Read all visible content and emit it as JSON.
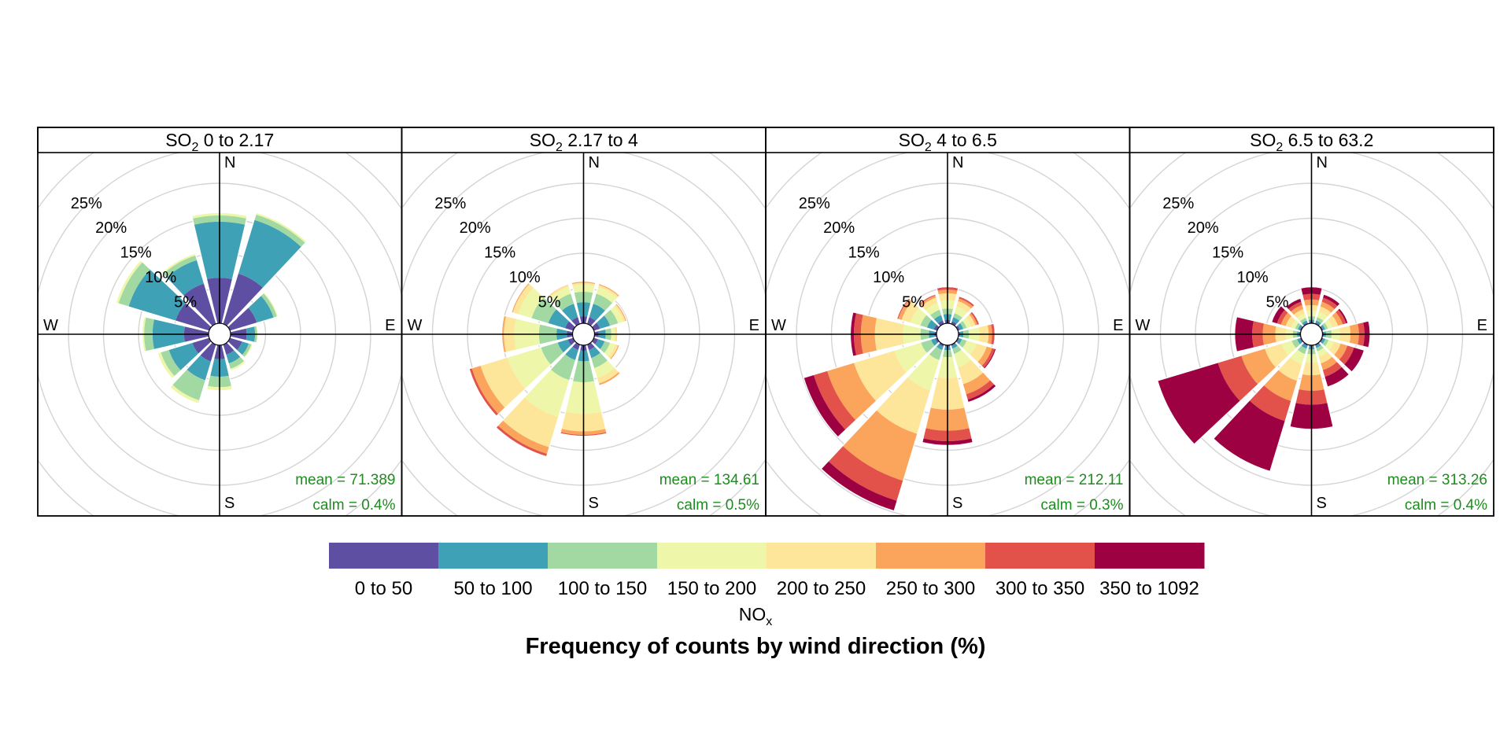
{
  "chart_data": {
    "type": "polar-stacked-bar",
    "caption": "Frequency of counts by wind direction (%)",
    "radial_ticks": [
      "5%",
      "10%",
      "15%",
      "20%",
      "25%"
    ],
    "radial_max": 30,
    "compass": {
      "n": "N",
      "e": "E",
      "s": "S",
      "w": "W"
    },
    "bin_colors": [
      "#5e4fa2",
      "#3fa1b5",
      "#a2d9a3",
      "#eef7a9",
      "#fde699",
      "#fba45c",
      "#e2524a",
      "#9e0142"
    ],
    "directions_deg": [
      0,
      30,
      60,
      90,
      120,
      150,
      180,
      210,
      240,
      270,
      300,
      330
    ],
    "legend": {
      "title_main": "NO",
      "title_sub": "x",
      "bins": [
        "0 to 50",
        "50 to 100",
        "100 to 150",
        "150 to 200",
        "200 to 250",
        "250 to 300",
        "300 to 350",
        "350 to 1092"
      ]
    },
    "panels": [
      {
        "title_main": "SO",
        "title_sub": "2",
        "title_rest": " 0 to 2.17",
        "mean": "mean = 71.389",
        "calm": "calm = 0.4%",
        "segments": [
          [
            6.5,
            8.0,
            0.9,
            0.4,
            0,
            0,
            0,
            0
          ],
          [
            7.5,
            8.0,
            0.8,
            0.3,
            0,
            0,
            0,
            0
          ],
          [
            4.0,
            2.5,
            0.5,
            0.2,
            0,
            0,
            0,
            0
          ],
          [
            2.3,
            1.2,
            0.3,
            0.1,
            0,
            0,
            0,
            0
          ],
          [
            1.8,
            1.0,
            0.4,
            0.2,
            0,
            0,
            0,
            0
          ],
          [
            1.5,
            1.3,
            0.8,
            0.3,
            0,
            0,
            0,
            0
          ],
          [
            2.0,
            2.5,
            1.5,
            0.5,
            0,
            0,
            0,
            0
          ],
          [
            2.5,
            2.8,
            3.0,
            0.5,
            0,
            0,
            0,
            0
          ],
          [
            2.5,
            3.5,
            1.2,
            0.5,
            0,
            0,
            0,
            0
          ],
          [
            3.5,
            4.5,
            1.2,
            0.3,
            0,
            0,
            0,
            0
          ],
          [
            5.0,
            7.0,
            1.5,
            0.4,
            0,
            0,
            0,
            0
          ],
          [
            6.0,
            3.5,
            0.7,
            0.3,
            0,
            0,
            0,
            0
          ]
        ]
      },
      {
        "title_main": "SO",
        "title_sub": "2",
        "title_rest": " 2.17 to 4",
        "mean": "mean = 134.61",
        "calm": "calm = 0.5%",
        "segments": [
          [
            1.0,
            2.0,
            1.5,
            1.0,
            0.3,
            0.2,
            0,
            0
          ],
          [
            1.0,
            2.0,
            1.5,
            1.0,
            0.3,
            0.2,
            0,
            0
          ],
          [
            0.9,
            1.5,
            1.2,
            0.8,
            0.3,
            0.2,
            0,
            0
          ],
          [
            0.6,
            1.0,
            0.8,
            0.5,
            0.3,
            0.1,
            0,
            0
          ],
          [
            0.6,
            1.0,
            0.8,
            0.8,
            0.4,
            0.2,
            0,
            0
          ],
          [
            0.8,
            1.2,
            1.5,
            1.5,
            0.8,
            0.3,
            0,
            0
          ],
          [
            0.8,
            1.5,
            3.0,
            4.5,
            2.5,
            0.5,
            0.2,
            0
          ],
          [
            0.8,
            1.5,
            3.0,
            5.5,
            4.5,
            1.0,
            0.4,
            0
          ],
          [
            0.8,
            1.5,
            2.5,
            5.0,
            4.0,
            1.3,
            0.4,
            0
          ],
          [
            0.8,
            1.5,
            2.5,
            3.5,
            1.5,
            0.3,
            0,
            0
          ],
          [
            1.2,
            2.5,
            2.5,
            2.0,
            0.8,
            0.2,
            0,
            0
          ],
          [
            1.0,
            2.0,
            1.5,
            1.0,
            0.3,
            0.1,
            0,
            0
          ]
        ]
      },
      {
        "title_main": "SO",
        "title_sub": "2",
        "title_rest": " 4 to 6.5",
        "mean": "mean = 212.11",
        "calm": "calm = 0.3%",
        "segments": [
          [
            0.5,
            0.8,
            0.8,
            1.2,
            1.0,
            0.5,
            0.3,
            0.1
          ],
          [
            0.4,
            0.6,
            0.6,
            1.0,
            0.8,
            0.4,
            0.2,
            0.1
          ],
          [
            0.3,
            0.5,
            0.5,
            0.7,
            0.6,
            0.3,
            0.2,
            0.1
          ],
          [
            0.2,
            0.5,
            0.8,
            1.5,
            1.3,
            0.5,
            0.3,
            0.1
          ],
          [
            0.2,
            0.4,
            0.7,
            1.5,
            1.5,
            0.8,
            0.4,
            0.2
          ],
          [
            0.2,
            0.4,
            0.8,
            2.0,
            2.5,
            1.5,
            0.8,
            0.4
          ],
          [
            0.2,
            0.5,
            1.0,
            3.0,
            4.5,
            3.0,
            1.5,
            0.6
          ],
          [
            0.3,
            0.5,
            1.5,
            4.5,
            6.5,
            7.0,
            3.0,
            1.5
          ],
          [
            0.3,
            0.6,
            1.5,
            4.0,
            6.0,
            4.0,
            2.0,
            1.5
          ],
          [
            0.3,
            0.8,
            1.2,
            2.5,
            4.0,
            2.0,
            1.0,
            0.5
          ],
          [
            0.5,
            1.0,
            1.0,
            1.5,
            1.3,
            0.5,
            0.2,
            0
          ],
          [
            0.5,
            0.8,
            0.8,
            1.0,
            0.8,
            0.3,
            0.2,
            0
          ]
        ]
      },
      {
        "title_main": "SO",
        "title_sub": "2",
        "title_rest": " 6.5 to 63.2",
        "mean": "mean = 313.26",
        "calm": "calm = 0.4%",
        "segments": [
          [
            0.2,
            0.3,
            0.5,
            0.8,
            0.8,
            0.8,
            0.8,
            1.0
          ],
          [
            0.2,
            0.3,
            0.5,
            0.8,
            0.8,
            0.7,
            0.6,
            0.5
          ],
          [
            0.2,
            0.3,
            0.4,
            0.7,
            0.8,
            0.7,
            0.5,
            0.3
          ],
          [
            0.2,
            0.3,
            0.8,
            1.2,
            1.5,
            1.2,
            0.8,
            0.8
          ],
          [
            0.2,
            0.3,
            0.5,
            0.8,
            1.0,
            1.0,
            1.0,
            1.5
          ],
          [
            0.2,
            0.3,
            0.5,
            0.8,
            1.0,
            1.0,
            1.0,
            1.5
          ],
          [
            0.2,
            0.4,
            0.7,
            1.2,
            1.8,
            2.2,
            2.0,
            3.5
          ],
          [
            0.2,
            0.4,
            0.8,
            1.5,
            2.5,
            3.0,
            3.0,
            7.5
          ],
          [
            0.2,
            0.4,
            0.8,
            1.5,
            2.5,
            3.5,
            3.5,
            9.0
          ],
          [
            0.2,
            0.3,
            0.6,
            1.0,
            1.5,
            1.8,
            1.5,
            2.5
          ],
          [
            0.2,
            0.3,
            0.4,
            0.6,
            0.8,
            0.7,
            0.6,
            0.8
          ],
          [
            0.2,
            0.3,
            0.4,
            0.6,
            0.7,
            0.6,
            0.5,
            0.5
          ]
        ]
      }
    ]
  }
}
